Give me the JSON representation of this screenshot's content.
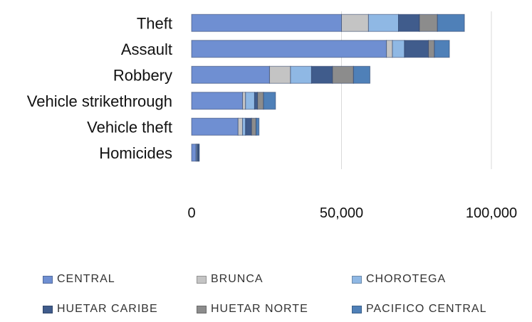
{
  "chart_data": {
    "type": "bar",
    "orientation": "horizontal",
    "stacked": true,
    "categories": [
      "Theft",
      "Assault",
      "Robbery",
      "Vehicle strikethrough",
      "Vehicle theft",
      "Homicides"
    ],
    "series": [
      {
        "name": "CENTRAL",
        "color": "#6f8fd2",
        "values": [
          50000,
          65000,
          26000,
          17000,
          15500,
          1500
        ]
      },
      {
        "name": "BRUNCA",
        "color": "#c4c4c4",
        "values": [
          9000,
          2000,
          7000,
          1000,
          1500,
          200
        ]
      },
      {
        "name": "CHOROTEGA",
        "color": "#8fb8e4",
        "values": [
          10000,
          4000,
          7000,
          3000,
          1000,
          300
        ]
      },
      {
        "name": "HUETAR CARIBE",
        "color": "#405c8c",
        "values": [
          7000,
          8000,
          7000,
          1000,
          2000,
          300
        ]
      },
      {
        "name": "HUETAR NORTE",
        "color": "#8c8c8c",
        "values": [
          6000,
          2000,
          7000,
          2000,
          1500,
          100
        ]
      },
      {
        "name": "PACIFICO CENTRAL",
        "color": "#4f80b8",
        "values": [
          9000,
          5000,
          5500,
          4000,
          1000,
          200
        ]
      }
    ],
    "xlim": [
      0,
      100000
    ],
    "xticks": [
      0,
      50000,
      100000
    ],
    "xtick_labels": [
      "0",
      "50,000",
      "100,000"
    ],
    "grid": true,
    "legend_position": "bottom"
  }
}
